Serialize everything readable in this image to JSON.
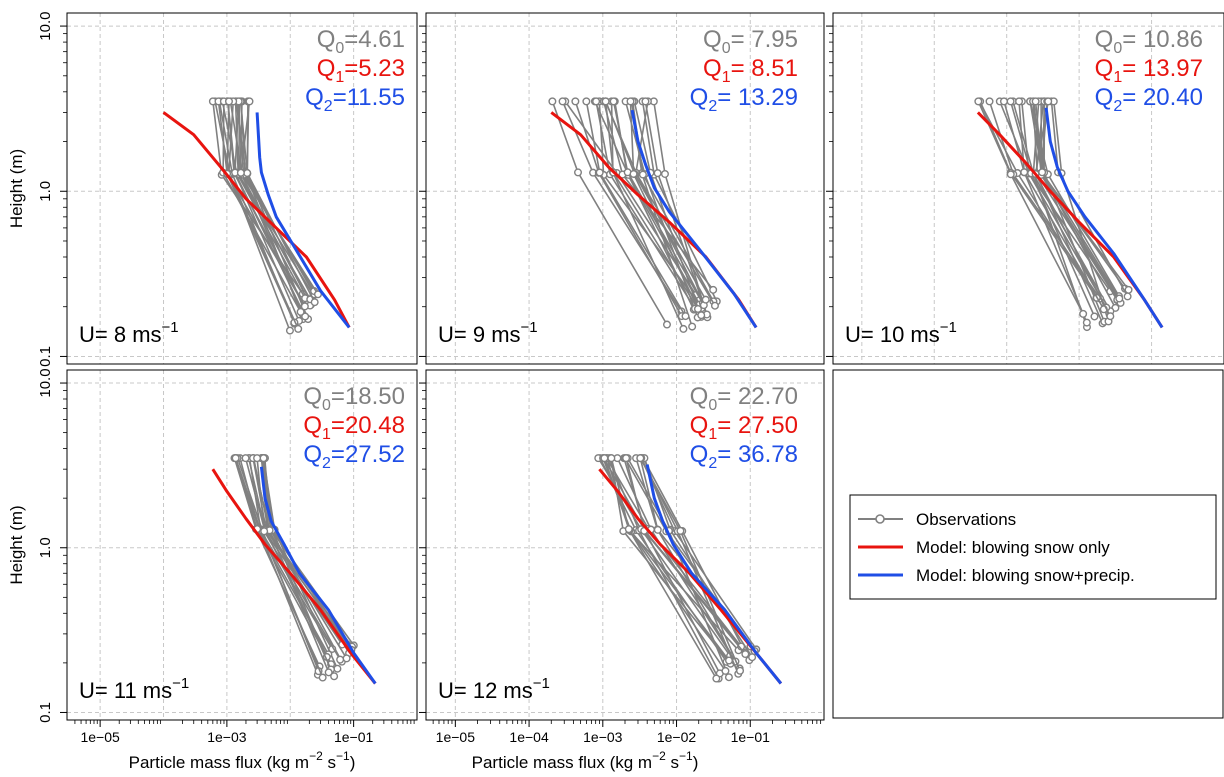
{
  "colors": {
    "observations": "#808080",
    "model_q1": "#e8140f",
    "model_q2": "#1f4ee6",
    "q0_text": "#808080",
    "grid": "#c8c8c8",
    "frame": "#000000"
  },
  "chart_data": [
    {
      "panel": "U8",
      "type": "line",
      "log_x": true,
      "log_y": true,
      "speed_label": {
        "prefix": "U= ",
        "value": "8",
        "unit": " ms",
        "exp": "−1"
      },
      "q": {
        "q0": "4.61",
        "q1": "5.23",
        "q2": "11.55",
        "eq0": "=",
        "eq1": "=",
        "eq2": "="
      },
      "xlim": [
        3e-06,
        1.0
      ],
      "ylim": [
        0.09,
        12
      ],
      "xticks": [
        {
          "v": 1e-05,
          "label": "1e−05"
        },
        {
          "v": 0.001,
          "label": "1e−03"
        },
        {
          "v": 0.1,
          "label": "1e−01"
        }
      ],
      "yticks": [
        {
          "v": 0.1,
          "label": "0.1"
        },
        {
          "v": 1.0,
          "label": "1.0"
        },
        {
          "v": 10.0,
          "label": "10.0"
        }
      ],
      "ylabel": "Height (m)",
      "xlabel": null,
      "show_xticklabels": false,
      "show_yticklabels": true,
      "obs_seed": 11,
      "obs": {
        "n": 22,
        "top": [
          0.00055,
          0.0023
        ],
        "mid": [
          0.0006,
          0.003
        ],
        "low": [
          0.009,
          0.03
        ],
        "y_top": 3.5,
        "y_mid": 1.28,
        "y_low": [
          0.14,
          0.26
        ]
      },
      "series": [
        {
          "name": "Model: blowing snow only",
          "color_key": "model_q1",
          "x": [
            0.0001,
            0.0003,
            0.0008,
            0.002,
            0.006,
            0.018,
            0.05,
            0.085
          ],
          "y": [
            3.0,
            2.2,
            1.4,
            0.9,
            0.6,
            0.4,
            0.22,
            0.15
          ]
        },
        {
          "name": "Model: blowing snow+precip.",
          "color_key": "model_q2",
          "x": [
            0.003,
            0.0033,
            0.0035,
            0.0045,
            0.006,
            0.012,
            0.03,
            0.085
          ],
          "y": [
            3.0,
            1.6,
            1.3,
            0.95,
            0.7,
            0.45,
            0.25,
            0.15
          ]
        }
      ]
    },
    {
      "panel": "U9",
      "type": "line",
      "log_x": true,
      "log_y": true,
      "speed_label": {
        "prefix": "U= ",
        "value": "9",
        "unit": " ms",
        "exp": "−1"
      },
      "q": {
        "q0": "7.95",
        "q1": "8.51",
        "q2": "13.29",
        "eq0": "= ",
        "eq1": "= ",
        "eq2": "= "
      },
      "xlim": [
        4e-06,
        1.0
      ],
      "ylim": [
        0.09,
        12
      ],
      "xticks": [
        {
          "v": 1e-05,
          "label": "1e−05"
        },
        {
          "v": 0.0001,
          "label": "1e−04"
        },
        {
          "v": 0.001,
          "label": "1e−03"
        },
        {
          "v": 0.01,
          "label": "1e−02"
        },
        {
          "v": 0.1,
          "label": "1e−01"
        }
      ],
      "yticks": [
        {
          "v": 0.1,
          "label": "0.1"
        },
        {
          "v": 1.0,
          "label": "1.0"
        },
        {
          "v": 10.0,
          "label": "10.0"
        }
      ],
      "ylabel": null,
      "xlabel": null,
      "show_xticklabels": false,
      "show_yticklabels": false,
      "obs_seed": 23,
      "obs": {
        "n": 24,
        "top": [
          0.0002,
          0.006
        ],
        "mid": [
          0.0004,
          0.008
        ],
        "low": [
          0.006,
          0.06
        ],
        "y_top": 3.5,
        "y_mid": 1.28,
        "y_low": [
          0.14,
          0.26
        ]
      },
      "series": [
        {
          "name": "Model: blowing snow only",
          "color_key": "model_q1",
          "x": [
            0.0002,
            0.0005,
            0.0012,
            0.003,
            0.008,
            0.025,
            0.07,
            0.12
          ],
          "y": [
            3.0,
            2.2,
            1.4,
            0.95,
            0.65,
            0.4,
            0.22,
            0.15
          ]
        },
        {
          "name": "Model: blowing snow+precip.",
          "color_key": "model_q2",
          "x": [
            0.0025,
            0.003,
            0.0038,
            0.005,
            0.008,
            0.02,
            0.06,
            0.12
          ],
          "y": [
            3.1,
            2.0,
            1.45,
            1.05,
            0.75,
            0.45,
            0.24,
            0.15
          ]
        }
      ]
    },
    {
      "panel": "U10",
      "type": "line",
      "log_x": true,
      "log_y": true,
      "speed_label": {
        "prefix": "U= ",
        "value": "10",
        "unit": " ms",
        "exp": "−1"
      },
      "q": {
        "q0": "10.86",
        "q1": "13.97",
        "q2": "20.40",
        "eq0": "= ",
        "eq1": "= ",
        "eq2": "= "
      },
      "xlim": [
        4e-06,
        1.0
      ],
      "ylim": [
        0.09,
        12
      ],
      "xticks": [],
      "yticks": [
        {
          "v": 0.1,
          "label": "0.1"
        },
        {
          "v": 1.0,
          "label": "1.0"
        },
        {
          "v": 10.0,
          "label": "10.0"
        }
      ],
      "ylabel": null,
      "xlabel": null,
      "show_xticklabels": false,
      "show_yticklabels": false,
      "obs_seed": 37,
      "obs": {
        "n": 24,
        "top": [
          0.0004,
          0.0045
        ],
        "mid": [
          0.0008,
          0.006
        ],
        "low": [
          0.008,
          0.06
        ],
        "y_top": 3.5,
        "y_mid": 1.28,
        "y_low": [
          0.15,
          0.26
        ]
      },
      "series": [
        {
          "name": "Model: blowing snow only",
          "color_key": "model_q1",
          "x": [
            0.0004,
            0.0008,
            0.0018,
            0.004,
            0.01,
            0.03,
            0.08,
            0.14
          ],
          "y": [
            3.0,
            2.2,
            1.5,
            1.0,
            0.65,
            0.4,
            0.22,
            0.15
          ]
        },
        {
          "name": "Model: blowing snow+precip.",
          "color_key": "model_q2",
          "x": [
            0.0035,
            0.004,
            0.005,
            0.007,
            0.012,
            0.03,
            0.08,
            0.14
          ],
          "y": [
            3.2,
            2.0,
            1.4,
            1.0,
            0.7,
            0.42,
            0.22,
            0.15
          ]
        }
      ]
    },
    {
      "panel": "U11",
      "type": "line",
      "log_x": true,
      "log_y": true,
      "speed_label": {
        "prefix": "U= ",
        "value": "11",
        "unit": " ms",
        "exp": "−1"
      },
      "q": {
        "q0": "18.50",
        "q1": "20.48",
        "q2": "27.52",
        "eq0": "=",
        "eq1": "=",
        "eq2": "="
      },
      "xlim": [
        3e-06,
        1.0
      ],
      "ylim": [
        0.09,
        12
      ],
      "xticks": [
        {
          "v": 1e-05,
          "label": "1e−05"
        },
        {
          "v": 0.001,
          "label": "1e−03"
        },
        {
          "v": 0.1,
          "label": "1e−01"
        }
      ],
      "yticks": [
        {
          "v": 0.1,
          "label": "0.1"
        },
        {
          "v": 1.0,
          "label": "1.0"
        },
        {
          "v": 10.0,
          "label": "10.0"
        }
      ],
      "ylabel": "Height (m)",
      "xlabel": {
        "text": "Particle mass flux (kg m",
        "e1": "−2",
        "mid": " s",
        "e2": "−1",
        "end": ")"
      },
      "show_xticklabels": true,
      "show_yticklabels": true,
      "obs_seed": 51,
      "obs": {
        "n": 22,
        "top": [
          0.0012,
          0.004
        ],
        "mid": [
          0.0025,
          0.006
        ],
        "low": [
          0.02,
          0.11
        ],
        "y_top": 3.5,
        "y_mid": 1.28,
        "y_low": [
          0.16,
          0.26
        ]
      },
      "series": [
        {
          "name": "Model: blowing snow only",
          "color_key": "model_q1",
          "x": [
            0.0006,
            0.001,
            0.002,
            0.004,
            0.01,
            0.03,
            0.09,
            0.22
          ],
          "y": [
            3.0,
            2.2,
            1.5,
            1.05,
            0.7,
            0.42,
            0.23,
            0.15
          ]
        },
        {
          "name": "Model: blowing snow+precip.",
          "color_key": "model_q2",
          "x": [
            0.0035,
            0.004,
            0.005,
            0.008,
            0.014,
            0.04,
            0.1,
            0.22
          ],
          "y": [
            3.1,
            2.0,
            1.45,
            1.05,
            0.7,
            0.42,
            0.23,
            0.15
          ]
        }
      ]
    },
    {
      "panel": "U12",
      "type": "line",
      "log_x": true,
      "log_y": true,
      "speed_label": {
        "prefix": "U= ",
        "value": "12",
        "unit": " ms",
        "exp": "−1"
      },
      "q": {
        "q0": "22.70",
        "q1": "27.50",
        "q2": "36.78",
        "eq0": "= ",
        "eq1": "= ",
        "eq2": "= "
      },
      "xlim": [
        4e-06,
        1.0
      ],
      "ylim": [
        0.09,
        12
      ],
      "xticks": [
        {
          "v": 1e-05,
          "label": "1e−05"
        },
        {
          "v": 0.0001,
          "label": "1e−04"
        },
        {
          "v": 0.001,
          "label": "1e−03"
        },
        {
          "v": 0.01,
          "label": "1e−02"
        },
        {
          "v": 0.1,
          "label": "1e−01"
        }
      ],
      "yticks": [
        {
          "v": 0.1,
          "label": "0.1"
        },
        {
          "v": 1.0,
          "label": "1.0"
        },
        {
          "v": 10.0,
          "label": "10.0"
        }
      ],
      "ylabel": null,
      "xlabel": {
        "text": "Particle mass flux (kg m",
        "e1": "−2",
        "mid": " s",
        "e2": "−1",
        "end": ")"
      },
      "show_xticklabels": true,
      "show_yticklabels": false,
      "obs_seed": 67,
      "obs": {
        "n": 22,
        "top": [
          0.0008,
          0.004
        ],
        "mid": [
          0.0012,
          0.015
        ],
        "low": [
          0.03,
          0.15
        ],
        "y_top": 3.5,
        "y_mid": 1.28,
        "y_low": [
          0.16,
          0.26
        ]
      },
      "series": [
        {
          "name": "Model: blowing snow only",
          "color_key": "model_q1",
          "x": [
            0.0009,
            0.0016,
            0.003,
            0.006,
            0.015,
            0.04,
            0.12,
            0.26
          ],
          "y": [
            3.0,
            2.2,
            1.5,
            1.05,
            0.7,
            0.42,
            0.23,
            0.15
          ]
        },
        {
          "name": "Model: blowing snow+precip.",
          "color_key": "model_q2",
          "x": [
            0.004,
            0.005,
            0.0065,
            0.009,
            0.016,
            0.045,
            0.12,
            0.26
          ],
          "y": [
            3.2,
            2.0,
            1.45,
            1.05,
            0.7,
            0.42,
            0.23,
            0.15
          ]
        }
      ]
    }
  ],
  "legend": {
    "items": [
      {
        "label": "Observations",
        "kind": "obs"
      },
      {
        "label": "Model: blowing snow only",
        "kind": "q1"
      },
      {
        "label": "Model: blowing snow+precip.",
        "kind": "q2"
      }
    ]
  }
}
